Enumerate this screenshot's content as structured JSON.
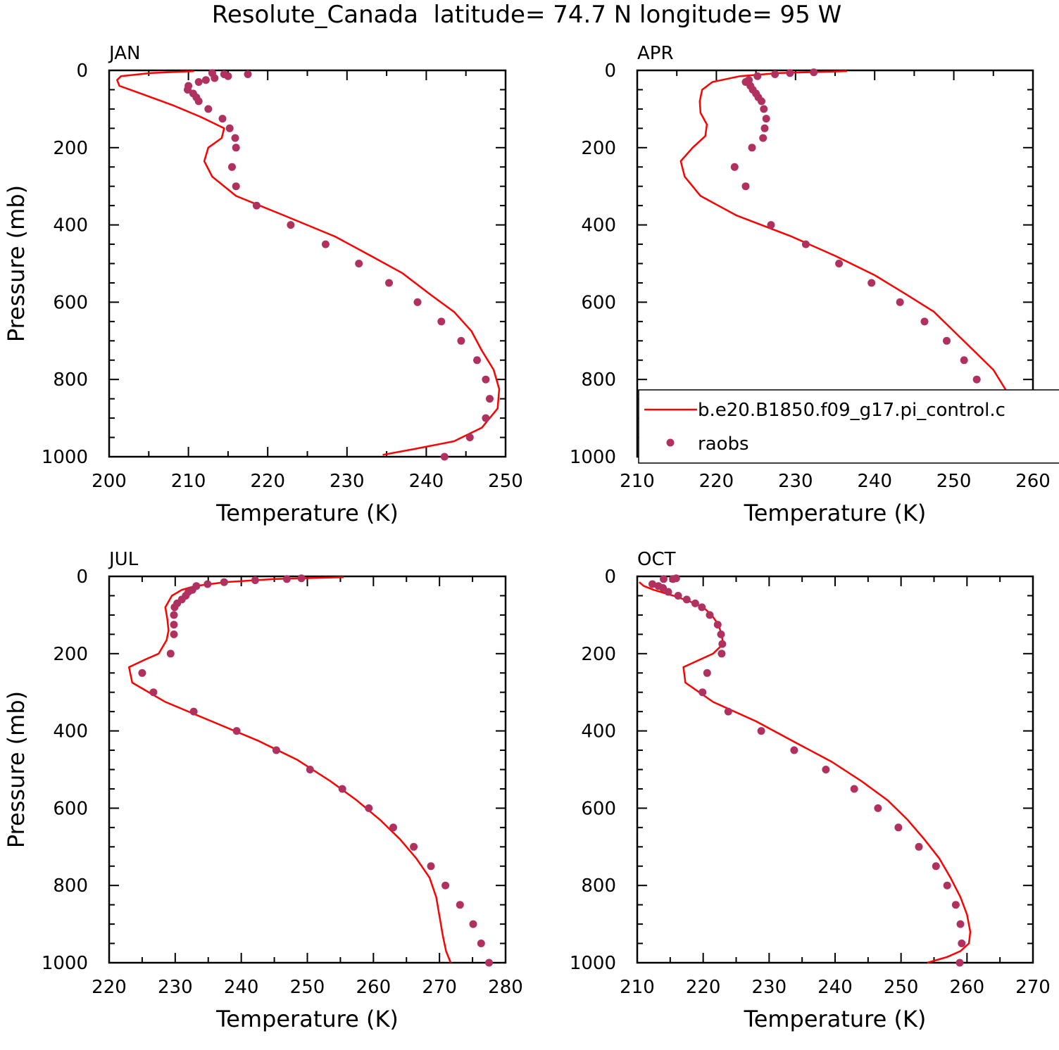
{
  "figure": {
    "title": "Resolute_Canada  latitude= 74.7 N longitude= 95 W"
  },
  "legend": {
    "model_label": "b.e20.B1850.f09_g17.pi_control.c",
    "obs_label": "raobs",
    "panel": "APR",
    "placement": "bottom-right of APR panel"
  },
  "colors": {
    "model_line": "#ff0000",
    "obs_marker": "#b03060",
    "axes": "#000000"
  },
  "chart_data": [
    {
      "type": "line",
      "panel_label": "JAN",
      "xlabel": "Temperature (K)",
      "ylabel": "Pressure (mb)",
      "xlim": [
        200,
        250
      ],
      "ylim": [
        1000,
        0
      ],
      "xticks": [
        200,
        210,
        220,
        230,
        240,
        250
      ],
      "yticks": [
        0,
        200,
        400,
        600,
        800,
        1000
      ],
      "series": [
        {
          "kind": "line",
          "x": [
            210.7,
            205.3,
            201.5,
            201.0,
            201.3,
            204.0,
            208.0,
            211.5,
            214.5,
            214.2,
            212.5,
            212.0,
            213.0,
            216.0,
            222.0,
            228.5,
            233.0,
            237.0,
            240.5,
            243.5,
            245.7,
            247.0,
            248.5,
            249.2,
            249.0,
            247.0,
            243.5,
            238.5,
            234.5
          ],
          "y": [
            2,
            7,
            15,
            25,
            40,
            60,
            90,
            120,
            150,
            175,
            200,
            235,
            275,
            325,
            375,
            430,
            480,
            525,
            580,
            625,
            675,
            725,
            775,
            825,
            875,
            925,
            960,
            980,
            995
          ]
        },
        {
          "kind": "scatter",
          "x": [
            213.0,
            214.5,
            217.5,
            215.0,
            213.3,
            212.2,
            211.3,
            210.0,
            209.9,
            210.6,
            211.0,
            211.3,
            212.5,
            214.3,
            215.2,
            215.9,
            216.0,
            215.5,
            216.0,
            218.6,
            222.9,
            227.3,
            231.5,
            235.3,
            238.9,
            241.9,
            244.4,
            246.4,
            247.5,
            248.0,
            247.5,
            245.5,
            242.3
          ],
          "y": [
            7,
            10,
            10,
            15,
            20,
            25,
            30,
            40,
            50,
            60,
            70,
            80,
            100,
            125,
            150,
            175,
            200,
            250,
            300,
            350,
            400,
            450,
            500,
            550,
            600,
            650,
            700,
            750,
            800,
            850,
            900,
            950,
            1000
          ]
        }
      ]
    },
    {
      "type": "line",
      "panel_label": "APR",
      "xlabel": "Temperature (K)",
      "ylabel": "",
      "xlim": [
        210,
        260
      ],
      "ylim": [
        1000,
        0
      ],
      "xticks": [
        210,
        220,
        230,
        240,
        250,
        260
      ],
      "yticks": [
        0,
        200,
        400,
        600,
        800,
        1000
      ],
      "series": [
        {
          "kind": "line",
          "x": [
            236.5,
            228.0,
            223.0,
            219.5,
            218.2,
            217.9,
            218.0,
            218.8,
            218.6,
            217.0,
            215.5,
            216.0,
            218.0,
            222.5,
            229.5,
            235.0,
            240.0,
            244.0,
            247.5,
            250.0,
            252.5,
            255.0,
            256.5,
            257.0,
            257.3,
            256.0,
            253.5,
            251.0,
            248.5
          ],
          "y": [
            2,
            7,
            15,
            30,
            50,
            80,
            110,
            140,
            170,
            200,
            235,
            275,
            325,
            375,
            430,
            480,
            530,
            580,
            625,
            675,
            725,
            775,
            825,
            875,
            925,
            960,
            980,
            990,
            1000
          ]
        },
        {
          "kind": "scatter",
          "x": [
            232.3,
            229.3,
            227.4,
            225.2,
            224.1,
            223.7,
            224.3,
            224.6,
            225.0,
            225.3,
            225.7,
            226.0,
            226.3,
            226.1,
            225.9,
            224.5,
            222.3,
            223.7,
            226.9,
            231.3,
            235.5,
            239.6,
            243.2,
            246.3,
            249.1,
            251.3,
            252.9,
            253.9,
            254.1,
            253.1,
            251.1
          ],
          "y": [
            5,
            7,
            10,
            15,
            25,
            30,
            40,
            50,
            60,
            70,
            80,
            100,
            125,
            150,
            175,
            200,
            250,
            300,
            400,
            450,
            500,
            550,
            600,
            650,
            700,
            750,
            800,
            850,
            900,
            950,
            1000
          ]
        }
      ]
    },
    {
      "type": "line",
      "panel_label": "JUL",
      "xlabel": "Temperature (K)",
      "ylabel": "Pressure (mb)",
      "xlim": [
        220,
        280
      ],
      "ylim": [
        1000,
        0
      ],
      "xticks": [
        220,
        230,
        240,
        250,
        260,
        270,
        280
      ],
      "yticks": [
        0,
        200,
        400,
        600,
        800,
        1000
      ],
      "series": [
        {
          "kind": "line",
          "x": [
            255.5,
            245.0,
            237.5,
            233.0,
            231.0,
            229.5,
            228.5,
            228.8,
            229.0,
            228.7,
            227.5,
            225.5,
            223.0,
            223.5,
            228.5,
            235.5,
            242.5,
            248.5,
            253.5,
            257.5,
            261.0,
            264.0,
            266.5,
            268.5,
            269.5,
            270.0,
            270.5,
            271.0,
            271.7
          ],
          "y": [
            2,
            7,
            15,
            25,
            35,
            50,
            80,
            110,
            140,
            165,
            200,
            215,
            235,
            275,
            325,
            375,
            425,
            475,
            530,
            580,
            630,
            680,
            730,
            780,
            830,
            880,
            930,
            970,
            1000
          ]
        },
        {
          "kind": "scatter",
          "x": [
            249.1,
            246.9,
            242.1,
            237.4,
            234.9,
            233.2,
            232.6,
            232.0,
            231.6,
            231.0,
            230.3,
            229.9,
            229.8,
            229.8,
            229.8,
            229.3,
            225.0,
            226.7,
            232.8,
            239.3,
            245.3,
            250.4,
            255.3,
            259.3,
            263.0,
            266.1,
            268.7,
            270.9,
            273.1,
            275.1,
            276.3,
            277.5
          ],
          "y": [
            5,
            7,
            10,
            15,
            20,
            25,
            35,
            40,
            50,
            60,
            70,
            80,
            100,
            125,
            150,
            200,
            250,
            300,
            350,
            400,
            450,
            500,
            550,
            600,
            650,
            700,
            750,
            800,
            850,
            900,
            950,
            1000
          ]
        }
      ]
    },
    {
      "type": "line",
      "panel_label": "OCT",
      "xlabel": "Temperature (K)",
      "ylabel": "",
      "xlim": [
        210,
        270
      ],
      "ylim": [
        1000,
        0
      ],
      "xticks": [
        210,
        220,
        230,
        240,
        250,
        260,
        270
      ],
      "yticks": [
        0,
        200,
        400,
        600,
        800,
        1000
      ],
      "series": [
        {
          "kind": "line",
          "x": [
            210.3,
            211.0,
            212.5,
            215.5,
            218.0,
            220.0,
            221.3,
            222.3,
            222.8,
            223.0,
            221.5,
            217.0,
            217.3,
            221.5,
            228.0,
            234.0,
            239.5,
            244.0,
            248.0,
            251.0,
            253.5,
            255.8,
            257.5,
            259.0,
            260.0,
            260.5,
            260.3,
            259.0,
            257.0,
            254.0
          ],
          "y": [
            15,
            25,
            35,
            50,
            65,
            80,
            100,
            125,
            150,
            175,
            200,
            235,
            275,
            325,
            375,
            430,
            480,
            530,
            580,
            630,
            680,
            730,
            780,
            830,
            875,
            920,
            950,
            970,
            985,
            1000
          ]
        },
        {
          "kind": "scatter",
          "x": [
            215.9,
            215.4,
            214.0,
            212.3,
            213.2,
            213.9,
            214.7,
            216.2,
            217.5,
            218.8,
            219.8,
            221.0,
            222.2,
            222.7,
            222.9,
            222.8,
            220.6,
            219.9,
            223.8,
            228.8,
            233.8,
            238.6,
            242.9,
            246.5,
            249.6,
            252.7,
            255.3,
            257.0,
            258.3,
            259.0,
            259.2,
            258.9
          ],
          "y": [
            5,
            7,
            7,
            20,
            25,
            30,
            40,
            50,
            60,
            70,
            80,
            100,
            125,
            150,
            175,
            200,
            250,
            300,
            350,
            400,
            450,
            500,
            550,
            600,
            650,
            700,
            750,
            800,
            850,
            900,
            950,
            1000
          ]
        }
      ]
    }
  ]
}
